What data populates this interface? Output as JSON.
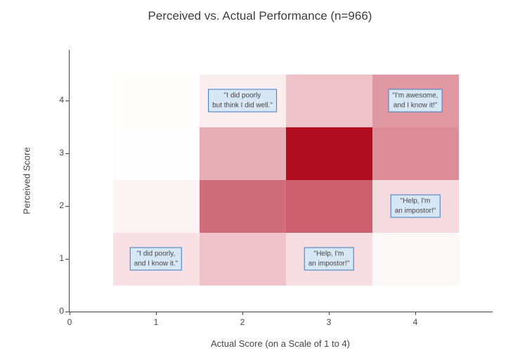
{
  "chart_data": {
    "type": "heatmap",
    "title": "Perceived vs. Actual Performance (n=966)",
    "xlabel": "Actual Score (on a Scale of 1 to 4)",
    "ylabel": "Perceived Score",
    "n_total": 966,
    "x_values": [
      1,
      2,
      3,
      4
    ],
    "y_values": [
      1,
      2,
      3,
      4
    ],
    "x_tick_labels": [
      "0",
      "1",
      "2",
      "3",
      "4"
    ],
    "y_tick_labels": [
      "0",
      "1",
      "2",
      "3",
      "4"
    ],
    "x_range": [
      0,
      4.9
    ],
    "y_range": [
      0,
      4.96
    ],
    "grid": false,
    "legend": "none",
    "rows": [
      {
        "perceived": 4,
        "values_estimated": [
          1,
          15,
          51,
          88
        ],
        "colors": [
          "#fffcfc",
          "#faeef0",
          "#edc2c8",
          "#e099a3"
        ]
      },
      {
        "perceived": 3,
        "values_estimated": [
          2,
          71,
          216,
          98
        ],
        "colors": [
          "#fefdfd",
          "#e6aeb6",
          "#b10d20",
          "#dc8d97"
        ]
      },
      {
        "perceived": 2,
        "values_estimated": [
          9,
          129,
          139,
          32
        ],
        "colors": [
          "#fcf4f5",
          "#d06d7c",
          "#cc5f6e",
          "#f5dbdf"
        ]
      },
      {
        "perceived": 1,
        "values_estimated": [
          28,
          51,
          30,
          6
        ],
        "colors": [
          "#f8e0e4",
          "#eec3c9",
          "#f7dee2",
          "#fdf8f8"
        ]
      }
    ],
    "annotations": [
      {
        "text": "\"I did poorly\nbut think I did well.\"",
        "x": 2,
        "y": 4
      },
      {
        "text": "\"I'm awesome,\nand I know it!\"",
        "x": 4,
        "y": 4
      },
      {
        "text": "\"Help, I'm\nan impostor!\"",
        "x": 4,
        "y": 2
      },
      {
        "text": "\"I did poorly,\nand I know it.\"",
        "x": 1,
        "y": 1
      },
      {
        "text": "\"Help, I'm\nan impostor!\"",
        "x": 3,
        "y": 1
      }
    ],
    "colors": {
      "min_color": "#ffffff",
      "max_color": "#b10d20",
      "annotation_bg": "#d8e7f5",
      "annotation_border": "#3c7cbd",
      "axis_color": "#444444",
      "text_color": "#444444",
      "title_color": "#3d3d3d"
    }
  }
}
